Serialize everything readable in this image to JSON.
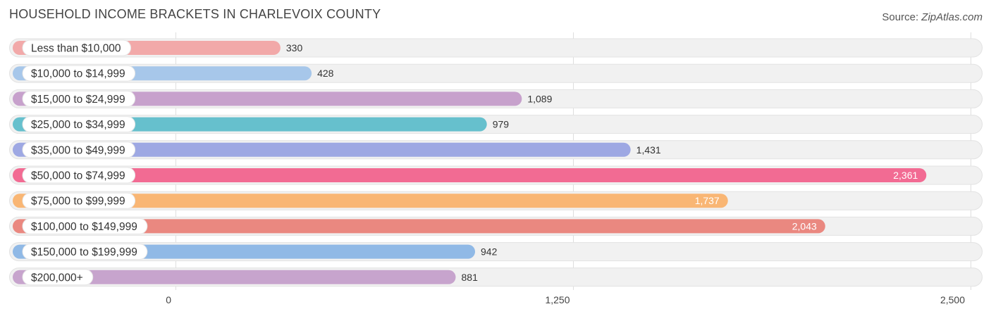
{
  "header": {
    "title": "HOUSEHOLD INCOME BRACKETS IN CHARLEVOIX COUNTY",
    "source_prefix": "Source: ",
    "source_brand": "ZipAtlas.com"
  },
  "chart_data": {
    "type": "bar",
    "orientation": "horizontal",
    "title": "HOUSEHOLD INCOME BRACKETS IN CHARLEVOIX COUNTY",
    "xlabel": "",
    "ylabel": "",
    "xlim": [
      0,
      2500
    ],
    "ticks": [
      0,
      1250,
      2500
    ],
    "tick_labels": [
      "0",
      "1,250",
      "2,500"
    ],
    "grid": true,
    "categories": [
      "Less than $10,000",
      "$10,000 to $14,999",
      "$15,000 to $24,999",
      "$25,000 to $34,999",
      "$35,000 to $49,999",
      "$50,000 to $74,999",
      "$75,000 to $99,999",
      "$100,000 to $149,999",
      "$150,000 to $199,999",
      "$200,000+"
    ],
    "values": [
      330,
      428,
      1089,
      979,
      1431,
      2361,
      1737,
      2043,
      942,
      881
    ],
    "value_labels": [
      "330",
      "428",
      "1,089",
      "979",
      "1,431",
      "2,361",
      "1,737",
      "2,043",
      "942",
      "881"
    ],
    "colors": [
      "#f2a9a9",
      "#a7c7ea",
      "#c7a1cc",
      "#66c0cd",
      "#9ea8e3",
      "#f26b93",
      "#f9b674",
      "#ea8880",
      "#90b9e6",
      "#c7a4cd"
    ]
  }
}
